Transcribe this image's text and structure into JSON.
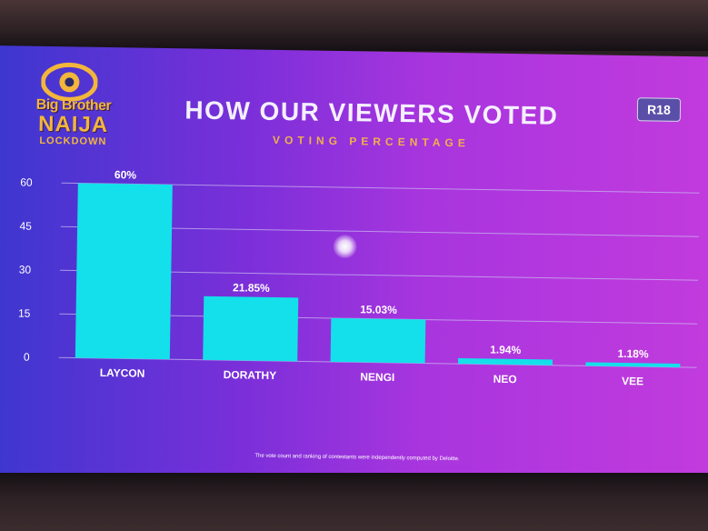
{
  "show": {
    "logo_line1": "Big Brother",
    "logo_line2": "NAIJA",
    "logo_line3": "LOCKDOWN",
    "rating": "R18"
  },
  "title": "HOW OUR VIEWERS VOTED",
  "subtitle": "VOTING PERCENTAGE",
  "footnote": "The vote count and ranking of contestants were independently computed by Deloitte.",
  "colors": {
    "bar": "#13e0ea",
    "gridline": "#c9b7f0",
    "text": "#ffffff",
    "accent": "#f0b14a"
  },
  "chart_data": {
    "type": "bar",
    "title": "HOW OUR VIEWERS VOTED",
    "subtitle": "VOTING PERCENTAGE",
    "categories": [
      "LAYCON",
      "DORATHY",
      "NENGI",
      "NEO",
      "VEE"
    ],
    "values": [
      60,
      21.85,
      15.03,
      1.94,
      1.18
    ],
    "data_labels": [
      "60%",
      "21.85%",
      "15.03%",
      "1.94%",
      "1.18%"
    ],
    "yticks": [
      "0",
      "15",
      "30",
      "45",
      "60"
    ],
    "ylim": [
      0,
      60
    ],
    "grid": true,
    "legend": "none"
  }
}
